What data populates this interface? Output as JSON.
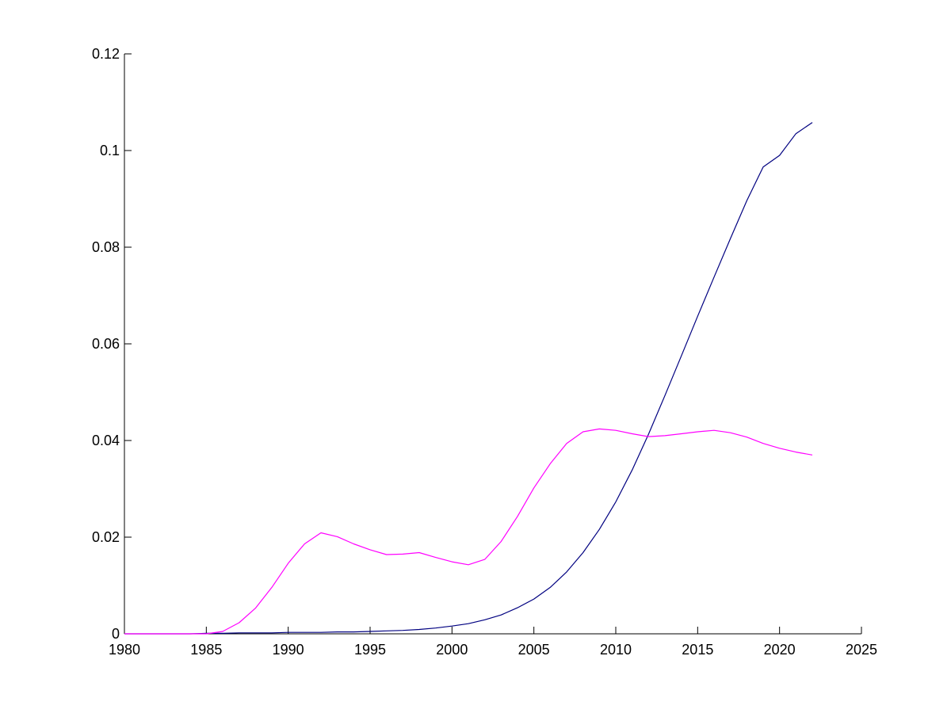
{
  "chart_data": {
    "type": "line",
    "title": "",
    "xlabel": "",
    "ylabel": "",
    "xlim": [
      1980,
      2025
    ],
    "ylim": [
      0,
      0.12
    ],
    "grid": false,
    "legend": "none",
    "x_ticks": [
      1980,
      1985,
      1990,
      1995,
      2000,
      2005,
      2010,
      2015,
      2020,
      2025
    ],
    "y_ticks": [
      0,
      0.02,
      0.04,
      0.06,
      0.08,
      0.1,
      0.12
    ],
    "x_tick_labels": [
      "1980",
      "1985",
      "1990",
      "1995",
      "2000",
      "2005",
      "2010",
      "2015",
      "2020",
      "2025"
    ],
    "y_tick_labels": [
      "0",
      "0.02",
      "0.04",
      "0.06",
      "0.08",
      "0.1",
      "0.12"
    ],
    "x": [
      1980,
      1981,
      1982,
      1983,
      1984,
      1985,
      1986,
      1987,
      1988,
      1989,
      1990,
      1991,
      1992,
      1993,
      1994,
      1995,
      1996,
      1997,
      1998,
      1999,
      2000,
      2001,
      2002,
      2003,
      2004,
      2005,
      2006,
      2007,
      2008,
      2009,
      2010,
      2011,
      2012,
      2013,
      2014,
      2015,
      2016,
      2017,
      2018,
      2019,
      2020,
      2021,
      2022
    ],
    "series": [
      {
        "color": "#000080",
        "values": [
          0,
          0,
          0,
          0,
          0,
          0.0001,
          0.0001,
          0.0002,
          0.0002,
          0.0002,
          0.0003,
          0.0003,
          0.0003,
          0.0004,
          0.0004,
          0.0005,
          0.0006,
          0.0007,
          0.0009,
          0.0012,
          0.0016,
          0.0021,
          0.0029,
          0.0039,
          0.0054,
          0.0072,
          0.0096,
          0.0128,
          0.0168,
          0.0216,
          0.0273,
          0.0339,
          0.0413,
          0.0493,
          0.0575,
          0.0657,
          0.0738,
          0.0818,
          0.0896,
          0.0966,
          0.099,
          0.1035,
          0.1058
        ]
      },
      {
        "color": "#ff00ff",
        "values": [
          0,
          0,
          0,
          0,
          0,
          0,
          0.0005,
          0.0023,
          0.0053,
          0.0096,
          0.0146,
          0.0186,
          0.0209,
          0.0201,
          0.0186,
          0.0174,
          0.0164,
          0.0165,
          0.0168,
          0.0158,
          0.0149,
          0.0143,
          0.0154,
          0.0191,
          0.0243,
          0.0302,
          0.0352,
          0.0394,
          0.0418,
          0.0424,
          0.0421,
          0.0414,
          0.0408,
          0.041,
          0.0414,
          0.0418,
          0.0421,
          0.0416,
          0.0407,
          0.0394,
          0.0384,
          0.0376,
          0.037
        ]
      }
    ]
  }
}
